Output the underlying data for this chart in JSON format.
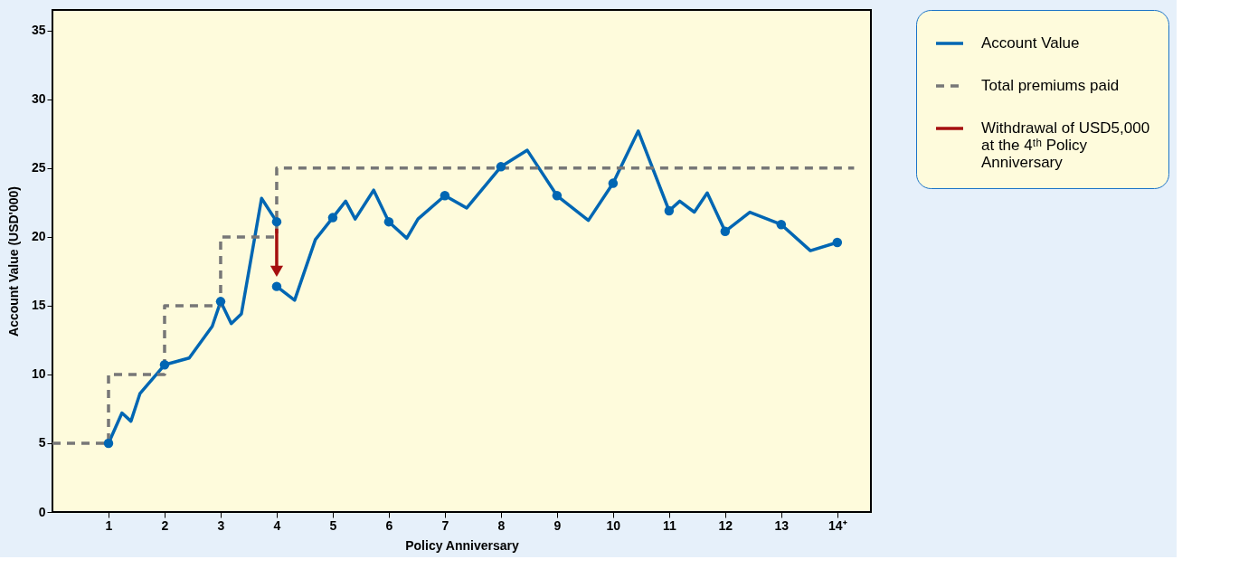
{
  "chart_data": {
    "type": "line",
    "xlabel": "Policy Anniversary",
    "ylabel": "Account Value (USD'000)",
    "xlim": [
      0,
      14.6
    ],
    "ylim": [
      0,
      36.5
    ],
    "xticks": [
      1,
      2,
      3,
      4,
      5,
      6,
      7,
      8,
      9,
      10,
      11,
      12,
      13,
      {
        "value": 14,
        "label": "14⁺"
      }
    ],
    "yticks": [
      0,
      5,
      10,
      15,
      20,
      25,
      30,
      35
    ],
    "grid": false,
    "legend": "right",
    "series": [
      {
        "name": "Account Value",
        "color": "#0066b3",
        "line_style": "solid",
        "x": [
          1,
          1.24,
          1.4,
          1.56,
          2,
          2.44,
          2.85,
          3,
          3.19,
          3.37,
          3.73,
          4,
          null,
          4,
          4.32,
          4.69,
          5,
          5.23,
          5.4,
          5.73,
          6,
          6.32,
          6.52,
          7,
          7.39,
          8,
          8.47,
          9,
          9.56,
          10,
          10.45,
          11,
          11.19,
          11.45,
          11.68,
          12,
          12.44,
          13,
          13.52,
          14
        ],
        "values": [
          5,
          7.2,
          6.6,
          8.6,
          10.7,
          11.2,
          13.5,
          15.3,
          13.7,
          14.4,
          22.8,
          21.1,
          null,
          16.4,
          15.4,
          19.8,
          21.4,
          22.6,
          21.3,
          23.4,
          21.1,
          19.9,
          21.3,
          23.0,
          22.1,
          25.1,
          26.3,
          23.0,
          21.2,
          23.9,
          27.7,
          21.9,
          22.6,
          21.8,
          23.2,
          20.4,
          21.8,
          20.9,
          19.0,
          19.6
        ]
      },
      {
        "name": "Total premiums paid",
        "type": "step",
        "color": "#777777",
        "line_style": "dashed",
        "x": [
          0,
          1,
          2,
          3,
          4,
          14.3
        ],
        "values": [
          5,
          10,
          15,
          20,
          25,
          25
        ]
      },
      {
        "name": "Withdrawal of USD5,000 at the 4ᵗʰ Policy Anniversary",
        "color": "#a50f0f",
        "line_style": "solid",
        "x": [
          4,
          4
        ],
        "values": [
          20.6,
          17.5
        ]
      },
      {
        "type": "scatter",
        "color": "#0066b3",
        "marker": "circle",
        "x": [
          1,
          2,
          3,
          4,
          4,
          5,
          6,
          7,
          8,
          9,
          10,
          11,
          12,
          13,
          14
        ],
        "values": [
          5,
          10.7,
          15.3,
          21.1,
          16.4,
          21.4,
          21.1,
          23.0,
          25.1,
          23.0,
          23.9,
          21.9,
          20.4,
          20.9,
          19.6
        ]
      }
    ]
  }
}
